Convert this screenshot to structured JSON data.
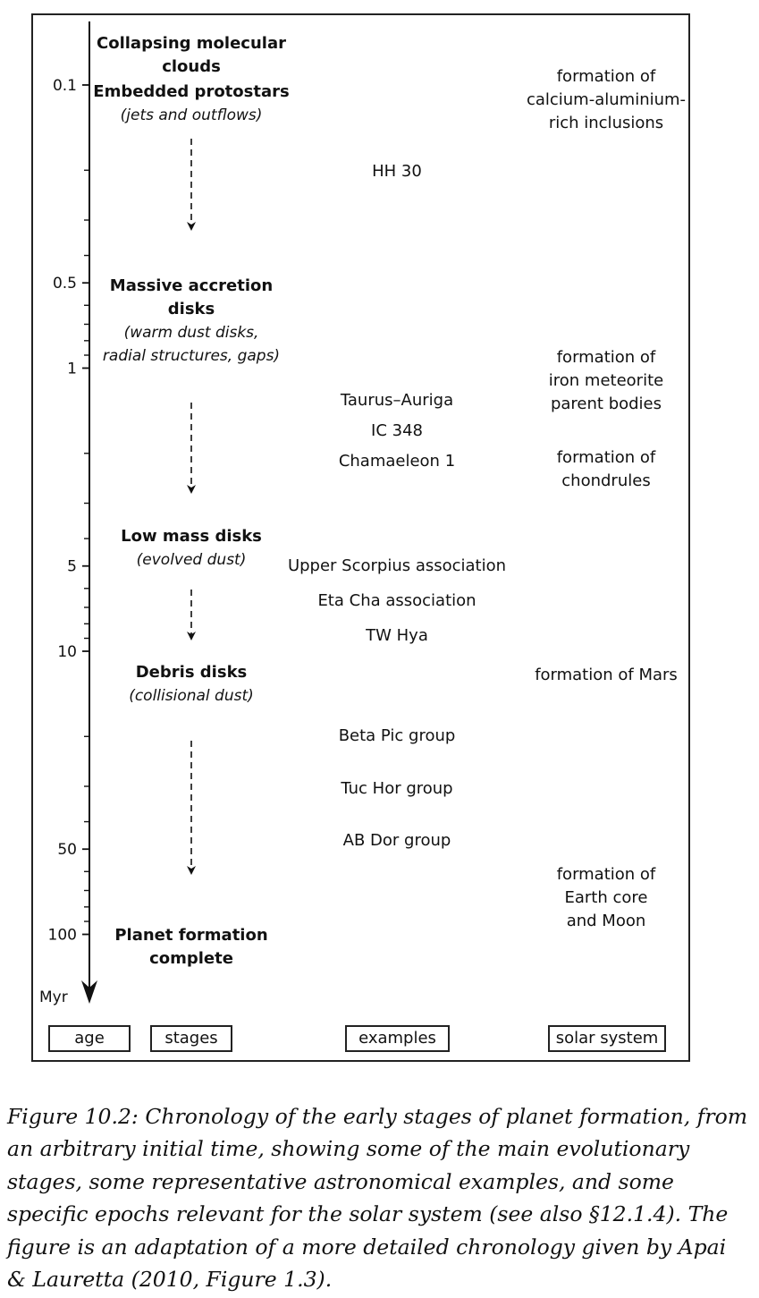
{
  "axis": {
    "unit": "Myr",
    "ticks": [
      {
        "value": 0.1,
        "label": "0.1"
      },
      {
        "value": 0.2,
        "label": ""
      },
      {
        "value": 0.3,
        "label": ""
      },
      {
        "value": 0.4,
        "label": ""
      },
      {
        "value": 0.5,
        "label": "0.5"
      },
      {
        "value": 0.6,
        "label": ""
      },
      {
        "value": 0.7,
        "label": ""
      },
      {
        "value": 0.8,
        "label": ""
      },
      {
        "value": 0.9,
        "label": ""
      },
      {
        "value": 1,
        "label": "1"
      },
      {
        "value": 2,
        "label": ""
      },
      {
        "value": 3,
        "label": ""
      },
      {
        "value": 4,
        "label": ""
      },
      {
        "value": 5,
        "label": "5"
      },
      {
        "value": 6,
        "label": ""
      },
      {
        "value": 7,
        "label": ""
      },
      {
        "value": 8,
        "label": ""
      },
      {
        "value": 9,
        "label": ""
      },
      {
        "value": 10,
        "label": "10"
      },
      {
        "value": 20,
        "label": ""
      },
      {
        "value": 30,
        "label": ""
      },
      {
        "value": 40,
        "label": ""
      },
      {
        "value": 50,
        "label": "50"
      },
      {
        "value": 60,
        "label": ""
      },
      {
        "value": 70,
        "label": ""
      },
      {
        "value": 80,
        "label": ""
      },
      {
        "value": 90,
        "label": ""
      },
      {
        "value": 100,
        "label": "100"
      }
    ]
  },
  "stages": [
    {
      "title": [
        "Collapsing molecular",
        "clouds",
        "Embedded protostars"
      ],
      "note": [
        "(jets and outflows)"
      ]
    },
    {
      "title": [
        "Massive accretion",
        "disks"
      ],
      "note": [
        "(warm dust disks,",
        "radial structures, gaps)"
      ]
    },
    {
      "title": [
        "Low mass disks"
      ],
      "note": [
        "(evolved dust)"
      ]
    },
    {
      "title": [
        "Debris disks"
      ],
      "note": [
        "(collisional dust)"
      ]
    },
    {
      "title": [
        "Planet formation",
        "complete"
      ],
      "note": []
    }
  ],
  "examples": [
    "HH 30",
    "Taurus–Auriga",
    "IC 348",
    "Chamaeleon 1",
    "Upper Scorpius association",
    "Eta Cha association",
    "TW Hya",
    "Beta Pic group",
    "Tuc Hor group",
    "AB Dor group"
  ],
  "solar_system": [
    [
      "formation of",
      "calcium-aluminium-",
      "rich inclusions"
    ],
    [
      "formation of",
      "iron meteorite",
      "parent bodies"
    ],
    [
      "formation of",
      "chondrules"
    ],
    [
      "formation of Mars"
    ],
    [
      "formation of",
      "Earth core",
      "and Moon"
    ]
  ],
  "column_headers": {
    "age": "age",
    "stages": "stages",
    "examples": "examples",
    "solar_system": "solar system"
  },
  "caption": {
    "label": "Figure 10.2:",
    "text": "Chronology of the early stages of planet formation, from an arbitrary initial time, showing some of the main evolutionary stages, some representative astronomical examples, and some specific epochs relevant for the solar system (see also §12.1.4). The figure is an adaptation of a more detailed chronology given by Apai & Lauretta (2010, Figure 1.3)."
  }
}
